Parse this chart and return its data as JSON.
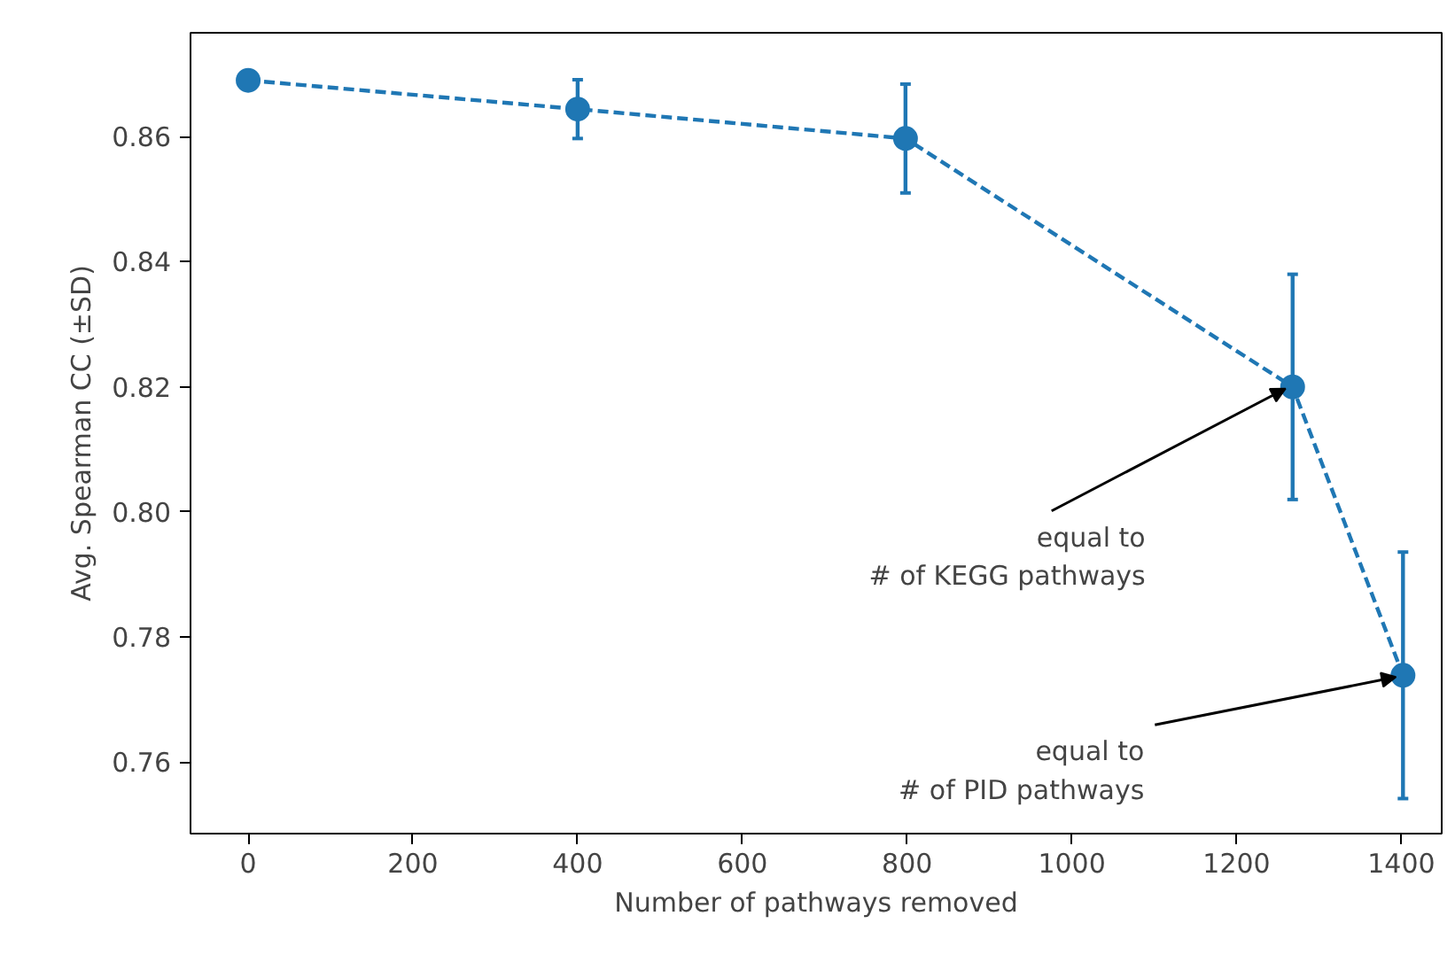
{
  "chart_data": {
    "type": "line",
    "xlabel": "Number of pathways removed",
    "ylabel": "Avg. Spearman CC (±SD)",
    "x": [
      0,
      400,
      798,
      1268,
      1402
    ],
    "series": [
      {
        "color": "#1f77b4",
        "values": [
          0.869,
          0.8644,
          0.8597,
          0.82,
          0.7739
        ],
        "errors": [
          null,
          0.0047,
          0.0087,
          0.018,
          0.0197
        ]
      }
    ],
    "xlim": [
      -70,
      1449
    ],
    "ylim": [
      0.7486,
      0.8766
    ],
    "xticks": [
      0,
      200,
      400,
      600,
      800,
      1000,
      1200,
      1400
    ],
    "yticks": [
      0.76,
      0.78,
      {
        "value": 0.8,
        "label": "0.80"
      },
      0.82,
      0.84,
      0.86
    ],
    "annotations": [
      {
        "text": "equal to\n# of KEGG pathways",
        "x": 1268,
        "y": 0.82
      },
      {
        "text": "equal to\n# of PID pathways",
        "x": 1402,
        "y": 0.7739
      }
    ],
    "marker": "circle",
    "line_style": "dashed",
    "grid": false
  }
}
